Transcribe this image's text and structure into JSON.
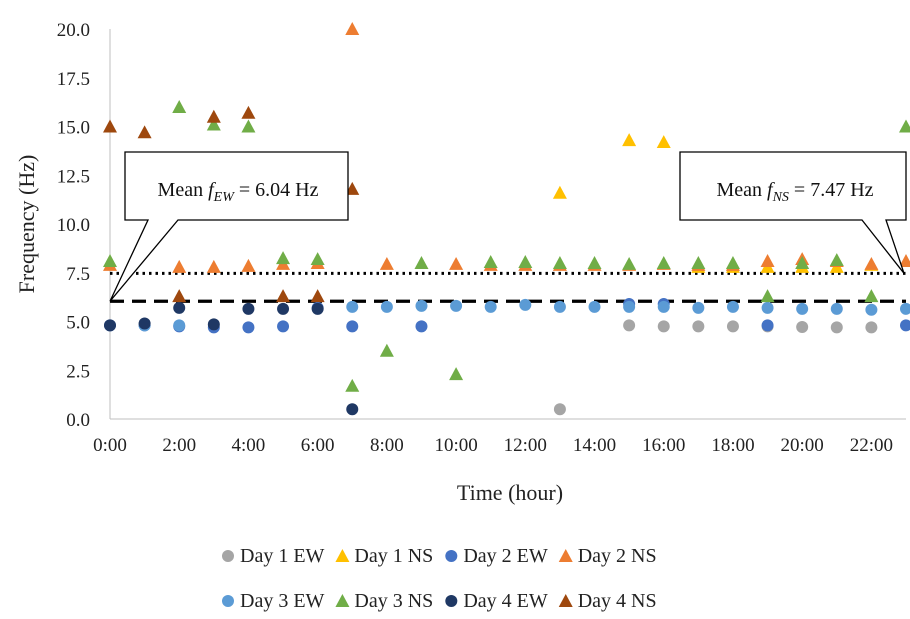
{
  "chart_data": {
    "type": "scatter",
    "title": "",
    "xlabel": "Time (hour)",
    "ylabel": "Frequency (Hz)",
    "xlim": [
      0,
      23
    ],
    "ylim": [
      0,
      20
    ],
    "y_ticks": [
      "0.0",
      "2.5",
      "5.0",
      "7.5",
      "10.0",
      "12.5",
      "15.0",
      "17.5",
      "20.0"
    ],
    "x_ticks": [
      "0:00",
      "2:00",
      "4:00",
      "6:00",
      "8:00",
      "10:00",
      "12:00",
      "14:00",
      "16:00",
      "18:00",
      "20:00",
      "22:00"
    ],
    "grid": false,
    "legend_position": "bottom",
    "series": [
      {
        "name": "Day 1 EW",
        "marker": "circle",
        "color": "#A5A5A5",
        "x": [
          13,
          15,
          16,
          17,
          18,
          19,
          20,
          21,
          22
        ],
        "y": [
          0.5,
          4.8,
          4.75,
          4.75,
          4.75,
          4.75,
          4.72,
          4.7,
          4.7
        ]
      },
      {
        "name": "Day 1 NS",
        "marker": "triangle",
        "color": "#FFC000",
        "x": [
          13,
          15,
          16,
          17,
          18,
          19,
          20,
          21,
          22
        ],
        "y": [
          11.6,
          14.3,
          14.2,
          7.8,
          7.8,
          7.8,
          7.8,
          7.8,
          7.9
        ]
      },
      {
        "name": "Day 2 EW",
        "marker": "circle",
        "color": "#4472C4",
        "x": [
          0,
          1,
          2,
          3,
          4,
          5,
          6,
          7,
          9,
          15,
          16,
          19,
          23
        ],
        "y": [
          4.8,
          4.8,
          4.75,
          4.7,
          4.7,
          4.75,
          5.7,
          4.75,
          4.75,
          5.9,
          5.9,
          4.8,
          4.8
        ]
      },
      {
        "name": "Day 2 NS",
        "marker": "triangle",
        "color": "#ED7D31",
        "x": [
          0,
          2,
          3,
          4,
          5,
          6,
          7,
          8,
          10,
          11,
          12,
          13,
          14,
          15,
          16,
          17,
          18,
          19,
          20,
          21,
          22,
          23
        ],
        "y": [
          7.9,
          7.8,
          7.8,
          7.85,
          7.95,
          8.0,
          20.0,
          7.95,
          7.95,
          7.9,
          7.9,
          7.9,
          7.9,
          7.9,
          7.95,
          7.9,
          7.9,
          8.1,
          8.2,
          8.1,
          7.95,
          8.1
        ]
      },
      {
        "name": "Day 3 EW",
        "marker": "circle",
        "color": "#5B9BD5",
        "x": [
          1,
          2,
          7,
          8,
          9,
          10,
          11,
          12,
          13,
          14,
          15,
          16,
          17,
          18,
          19,
          20,
          21,
          22,
          23
        ],
        "y": [
          4.8,
          4.8,
          5.75,
          5.75,
          5.8,
          5.8,
          5.75,
          5.85,
          5.75,
          5.75,
          5.75,
          5.75,
          5.7,
          5.75,
          5.7,
          5.65,
          5.65,
          5.6,
          5.65
        ]
      },
      {
        "name": "Day 3 NS",
        "marker": "triangle",
        "color": "#70AD47",
        "x": [
          0,
          2,
          3,
          4,
          5,
          6,
          7,
          8,
          9,
          10,
          11,
          12,
          13,
          14,
          15,
          16,
          17,
          18,
          19,
          20,
          21,
          22,
          23
        ],
        "y": [
          8.1,
          16.0,
          15.1,
          15.0,
          8.25,
          8.2,
          1.7,
          3.5,
          8.0,
          2.3,
          8.05,
          8.05,
          8.0,
          8.0,
          7.95,
          8.0,
          8.0,
          8.0,
          6.3,
          8.0,
          8.15,
          6.3,
          15.0
        ]
      },
      {
        "name": "Day 4 EW",
        "marker": "circle",
        "color": "#1F3864",
        "x": [
          0,
          1,
          2,
          3,
          4,
          5,
          6,
          7
        ],
        "y": [
          4.8,
          4.9,
          5.7,
          4.85,
          5.65,
          5.65,
          5.65,
          0.5
        ]
      },
      {
        "name": "Day 4 NS",
        "marker": "triangle",
        "color": "#9E480E",
        "x": [
          0,
          1,
          2,
          3,
          4,
          5,
          6,
          7
        ],
        "y": [
          15.0,
          14.7,
          6.3,
          15.5,
          15.7,
          6.3,
          6.3,
          11.8
        ]
      }
    ],
    "reference_lines": [
      {
        "name": "Mean fEW",
        "value": 6.04,
        "style": "dashed",
        "color": "#000000"
      },
      {
        "name": "Mean fNS",
        "value": 7.47,
        "style": "dotted",
        "color": "#000000"
      }
    ],
    "annotations": [
      {
        "id": "ew",
        "prefix": "Mean ",
        "f": "f",
        "sub": "EW",
        "suffix": " = 6.04 Hz",
        "pointer": {
          "x": 0,
          "y": 6.04
        }
      },
      {
        "id": "ns",
        "prefix": "Mean ",
        "f": "f",
        "sub": "NS",
        "suffix": " = 7.47 Hz",
        "pointer": {
          "x": 23,
          "y": 7.47
        }
      }
    ]
  }
}
